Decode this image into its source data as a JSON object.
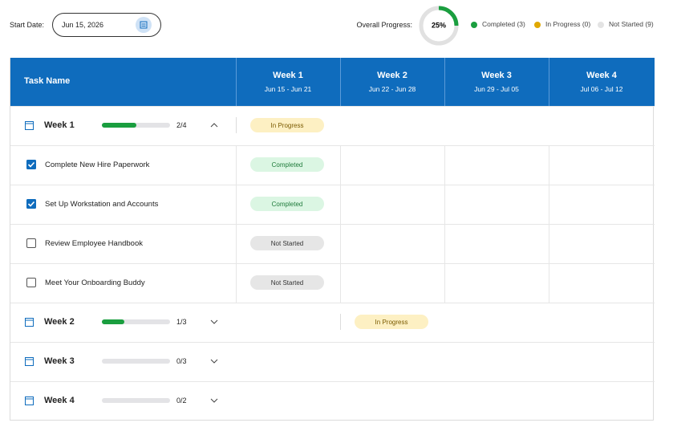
{
  "start_date": {
    "label": "Start Date:",
    "value": "Jun 15, 2026"
  },
  "overall_progress": {
    "label": "Overall Progress:",
    "percent": 25,
    "percent_label": "25%",
    "color": "#1a9e3f",
    "track": "#e1e1e1"
  },
  "legend": [
    {
      "label": "Completed (3)",
      "color": "#1a9e3f"
    },
    {
      "label": "In Progress (0)",
      "color": "#e0a800"
    },
    {
      "label": "Not Started (9)",
      "color": "#e3e3e3"
    }
  ],
  "table": {
    "header": "Task Name",
    "weeks": [
      {
        "title": "Week 1",
        "range": "Jun 15 - Jun 21"
      },
      {
        "title": "Week 2",
        "range": "Jun 22 - Jun 28"
      },
      {
        "title": "Week 3",
        "range": "Jun 29 - Jul 05"
      },
      {
        "title": "Week 4",
        "range": "Jul 06 - Jul 12"
      }
    ],
    "groups": [
      {
        "name": "Week 1",
        "done": 2,
        "total": 4,
        "count_label": "2/4",
        "expanded": true,
        "status": {
          "text": "In Progress",
          "week": 0,
          "bg": "#fdf0c3",
          "fg": "#7a5a00"
        },
        "tasks": [
          {
            "name": "Complete New Hire Paperwork",
            "checked": true,
            "status": {
              "text": "Completed",
              "week": 0,
              "bg": "#dbf6e3",
              "fg": "#1e7a3a"
            }
          },
          {
            "name": "Set Up Workstation and Accounts",
            "checked": true,
            "status": {
              "text": "Completed",
              "week": 0,
              "bg": "#dbf6e3",
              "fg": "#1e7a3a"
            }
          },
          {
            "name": "Review Employee Handbook",
            "checked": false,
            "status": {
              "text": "Not Started",
              "week": 0,
              "bg": "#e6e6e6",
              "fg": "#333333"
            }
          },
          {
            "name": "Meet Your Onboarding Buddy",
            "checked": false,
            "status": {
              "text": "Not Started",
              "week": 0,
              "bg": "#e6e6e6",
              "fg": "#333333"
            }
          }
        ]
      },
      {
        "name": "Week 2",
        "done": 1,
        "total": 3,
        "count_label": "1/3",
        "expanded": false,
        "status": {
          "text": "In Progress",
          "week": 1,
          "bg": "#fdf0c3",
          "fg": "#7a5a00"
        },
        "tasks": []
      },
      {
        "name": "Week 3",
        "done": 0,
        "total": 3,
        "count_label": "0/3",
        "expanded": false,
        "tasks": []
      },
      {
        "name": "Week 4",
        "done": 0,
        "total": 2,
        "count_label": "0/2",
        "expanded": false,
        "tasks": []
      }
    ]
  }
}
